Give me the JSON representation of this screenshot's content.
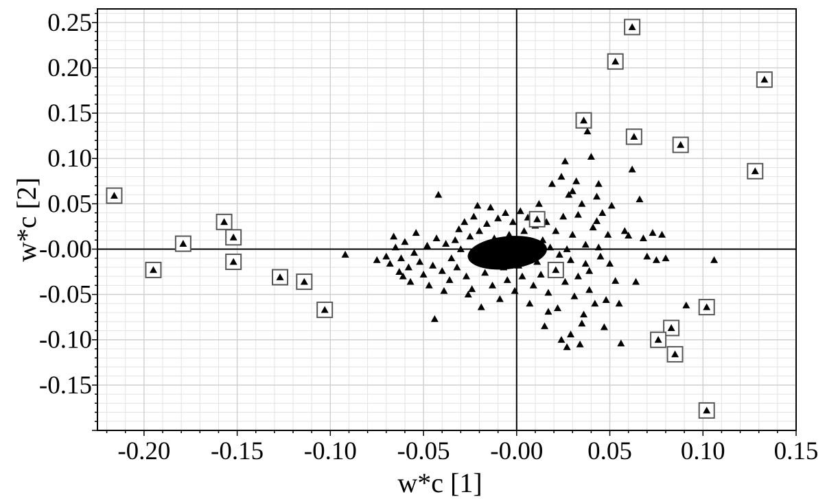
{
  "chart_data": {
    "type": "scatter",
    "title": "",
    "xlabel": "w*c [1]",
    "ylabel": "w*c [2]",
    "xlim": [
      -0.225,
      0.15
    ],
    "ylim": [
      -0.2,
      0.265
    ],
    "grid": true,
    "x_ticks": [
      "-0.20",
      "-0.15",
      "-0.10",
      "-0.05",
      "-0.00",
      "0.05",
      "0.10",
      "0.15"
    ],
    "y_ticks": [
      "0.25",
      "0.20",
      "0.15",
      "0.10",
      "0.05",
      "-0.00",
      "-0.05",
      "-0.10",
      "-0.15"
    ],
    "marker": "triangle",
    "highlight_marker": "square",
    "series": [
      {
        "points": [
          [
            -0.092,
            -0.006
          ],
          [
            -0.075,
            -0.012
          ],
          [
            -0.07,
            -0.008
          ],
          [
            -0.068,
            -0.016
          ],
          [
            -0.065,
            0.002
          ],
          [
            -0.063,
            -0.025
          ],
          [
            -0.062,
            -0.01
          ],
          [
            -0.06,
            0.008
          ],
          [
            -0.058,
            -0.02
          ],
          [
            -0.057,
            -0.036
          ],
          [
            -0.055,
            -0.004
          ],
          [
            -0.054,
            0.018
          ],
          [
            -0.052,
            -0.014
          ],
          [
            -0.05,
            -0.028
          ],
          [
            -0.048,
            0.004
          ],
          [
            -0.047,
            -0.04
          ],
          [
            -0.045,
            -0.018
          ],
          [
            -0.044,
            -0.077
          ],
          [
            -0.043,
            0.012
          ],
          [
            -0.042,
            0.06
          ],
          [
            -0.04,
            -0.024
          ],
          [
            -0.038,
            0.006
          ],
          [
            -0.036,
            -0.034
          ],
          [
            -0.035,
            -0.01
          ],
          [
            -0.033,
            0.01
          ],
          [
            -0.032,
            -0.02
          ],
          [
            -0.03,
            0.0
          ],
          [
            -0.028,
            0.03
          ],
          [
            -0.027,
            -0.03
          ],
          [
            -0.025,
            0.014
          ],
          [
            -0.024,
            -0.044
          ],
          [
            -0.022,
            -0.006
          ],
          [
            -0.021,
            0.048
          ],
          [
            -0.02,
            0.02
          ],
          [
            -0.019,
            -0.064
          ],
          [
            -0.018,
            0.004
          ],
          [
            -0.017,
            -0.026
          ],
          [
            -0.016,
            0.028
          ],
          [
            -0.015,
            -0.012
          ],
          [
            -0.014,
            0.046
          ],
          [
            -0.013,
            -0.04
          ],
          [
            -0.012,
            0.012
          ],
          [
            -0.011,
            -0.008
          ],
          [
            -0.01,
            0.034
          ],
          [
            -0.009,
            -0.055
          ],
          [
            -0.008,
            0.002
          ],
          [
            -0.007,
            -0.02
          ],
          [
            -0.006,
            0.04
          ],
          [
            -0.005,
            -0.034
          ],
          [
            -0.004,
            0.016
          ],
          [
            -0.003,
            -0.01
          ],
          [
            -0.002,
            0.03
          ],
          [
            -0.001,
            -0.046
          ],
          [
            0.0,
            0.006
          ],
          [
            0.001,
            -0.018
          ],
          [
            0.002,
            0.042
          ],
          [
            0.003,
            -0.03
          ],
          [
            0.004,
            0.02
          ],
          [
            0.005,
            -0.008
          ],
          [
            0.006,
            0.035
          ],
          [
            0.007,
            -0.06
          ],
          [
            0.008,
            0.004
          ],
          [
            0.009,
            -0.04
          ],
          [
            0.01,
            0.026
          ],
          [
            0.011,
            -0.014
          ],
          [
            0.012,
            0.05
          ],
          [
            0.013,
            -0.028
          ],
          [
            0.014,
            0.01
          ],
          [
            0.015,
            -0.085
          ],
          [
            0.016,
            0.03
          ],
          [
            0.017,
            -0.048
          ],
          [
            0.018,
            0.002
          ],
          [
            0.019,
            0.072
          ],
          [
            0.02,
            -0.022
          ],
          [
            0.021,
            0.02
          ],
          [
            0.022,
            -0.065
          ],
          [
            0.023,
            -0.006
          ],
          [
            0.024,
            -0.1
          ],
          [
            0.025,
            0.036
          ],
          [
            0.026,
            -0.036
          ],
          [
            0.027,
            -0.108
          ],
          [
            0.028,
            0.06
          ],
          [
            0.029,
            -0.012
          ],
          [
            0.03,
            0.016
          ],
          [
            0.031,
            -0.052
          ],
          [
            0.032,
            0.075
          ],
          [
            0.033,
            -0.03
          ],
          [
            0.034,
            -0.105
          ],
          [
            0.035,
            0.05
          ],
          [
            0.036,
            -0.072
          ],
          [
            0.037,
            0.005
          ],
          [
            0.038,
            0.13
          ],
          [
            0.039,
            -0.045
          ],
          [
            0.04,
            0.102
          ],
          [
            0.041,
            0.024
          ],
          [
            0.042,
            -0.06
          ],
          [
            0.043,
            0.058
          ],
          [
            0.044,
            0.072
          ],
          [
            0.045,
            -0.008
          ],
          [
            0.046,
            0.04
          ],
          [
            0.048,
            -0.056
          ],
          [
            0.05,
            -0.016
          ],
          [
            0.051,
            0.048
          ],
          [
            0.053,
            -0.035
          ],
          [
            0.055,
            -0.06
          ],
          [
            0.056,
            -0.104
          ],
          [
            0.058,
            0.02
          ],
          [
            0.06,
            0.015
          ],
          [
            0.062,
            0.088
          ],
          [
            0.064,
            -0.036
          ],
          [
            0.066,
            0.055
          ],
          [
            0.068,
            0.012
          ],
          [
            0.07,
            -0.008
          ],
          [
            0.073,
            0.018
          ],
          [
            0.075,
            -0.012
          ],
          [
            0.076,
            -0.095
          ],
          [
            0.078,
            0.016
          ],
          [
            0.08,
            -0.01
          ],
          [
            0.091,
            -0.062
          ],
          [
            0.106,
            -0.012
          ],
          [
            0.026,
            0.097
          ],
          [
            0.024,
            0.08
          ],
          [
            0.03,
            0.064
          ],
          [
            0.047,
            -0.086
          ],
          [
            0.035,
            -0.082
          ],
          [
            0.029,
            -0.094
          ],
          [
            0.017,
            -0.069
          ],
          [
            0.049,
            0.016
          ],
          [
            0.043,
            0.031
          ],
          [
            0.037,
            -0.016
          ],
          [
            -0.066,
            0.014
          ],
          [
            -0.061,
            -0.03
          ],
          [
            -0.039,
            -0.046
          ],
          [
            -0.031,
            0.022
          ],
          [
            -0.026,
            -0.05
          ],
          [
            -0.023,
            0.036
          ],
          [
            0.027,
            0.0
          ],
          [
            0.033,
            0.038
          ],
          [
            0.039,
            -0.024
          ],
          [
            0.044,
            0.002
          ]
        ],
        "highlighted": [
          [
            -0.216,
            0.059
          ],
          [
            -0.195,
            -0.023
          ],
          [
            -0.179,
            0.006
          ],
          [
            -0.157,
            0.03
          ],
          [
            -0.152,
            0.013
          ],
          [
            -0.152,
            -0.014
          ],
          [
            -0.127,
            -0.031
          ],
          [
            -0.114,
            -0.036
          ],
          [
            -0.103,
            -0.067
          ],
          [
            0.011,
            0.033
          ],
          [
            0.021,
            -0.023
          ],
          [
            0.036,
            0.142
          ],
          [
            0.053,
            0.207
          ],
          [
            0.062,
            0.245
          ],
          [
            0.063,
            0.124
          ],
          [
            0.088,
            0.115
          ],
          [
            0.128,
            0.086
          ],
          [
            0.133,
            0.187
          ],
          [
            0.102,
            -0.064
          ],
          [
            0.083,
            -0.087
          ],
          [
            0.076,
            -0.1
          ],
          [
            0.085,
            -0.116
          ],
          [
            0.102,
            -0.178
          ]
        ]
      }
    ]
  }
}
